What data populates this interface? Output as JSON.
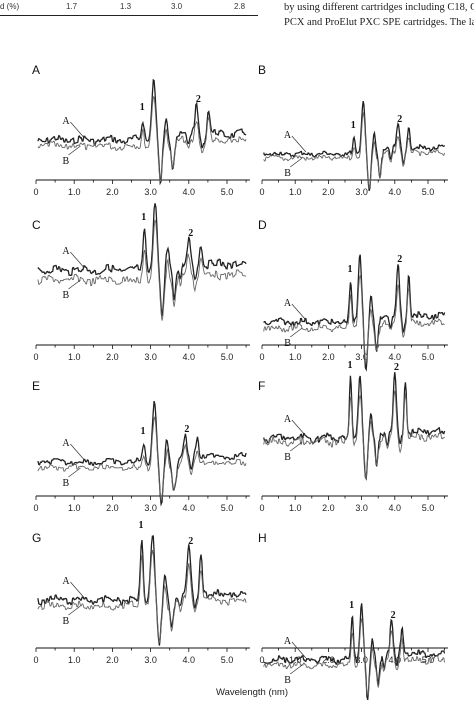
{
  "table_fragment": {
    "cells": [
      "d (%)",
      "1.7",
      "1.3",
      "3.0",
      "2.8"
    ]
  },
  "body_text": {
    "lines": [
      "by using different cartridges including C18, C",
      "PCX and ProElut PXC SPE cartridges. The la"
    ]
  },
  "figure": {
    "x_axis_label": "Wavelength (nm)",
    "tick_labels": [
      "0",
      "1.0",
      "2.0",
      "3.0",
      "4.0",
      "5.0"
    ],
    "panels": [
      {
        "label": "A",
        "curve_labels": [
          "A",
          "B"
        ],
        "peak_labels": [
          "1",
          "2"
        ]
      },
      {
        "label": "B",
        "curve_labels": [
          "A",
          "B"
        ],
        "peak_labels": [
          "1",
          "2"
        ]
      },
      {
        "label": "C",
        "curve_labels": [
          "A",
          "B"
        ],
        "peak_labels": [
          "1",
          "2"
        ]
      },
      {
        "label": "D",
        "curve_labels": [
          "A",
          "B"
        ],
        "peak_labels": [
          "1",
          "2"
        ]
      },
      {
        "label": "E",
        "curve_labels": [
          "A",
          "B"
        ],
        "peak_labels": [
          "1",
          "2"
        ]
      },
      {
        "label": "F",
        "curve_labels": [
          "A",
          "B"
        ],
        "peak_labels": [
          "1",
          "2"
        ]
      },
      {
        "label": "G",
        "curve_labels": [
          "A",
          "B"
        ],
        "peak_labels": [
          "1",
          "2"
        ]
      },
      {
        "label": "H",
        "curve_labels": [
          "A",
          "B"
        ],
        "peak_labels": [
          "1",
          "2"
        ]
      }
    ]
  }
}
